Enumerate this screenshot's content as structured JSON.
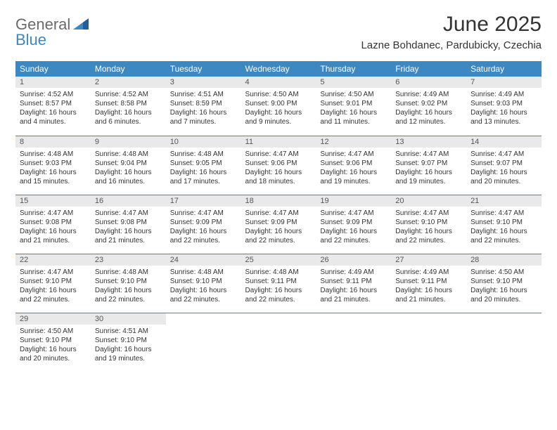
{
  "brand": {
    "line1": "General",
    "line2": "Blue",
    "line1_color": "#6a6a6a",
    "line2_color": "#3b88c3"
  },
  "title": "June 2025",
  "location": "Lazne Bohdanec, Pardubicky, Czechia",
  "header_bg": "#3b88c3",
  "header_fg": "#ffffff",
  "daynum_bg": "#e9e9e9",
  "border_color": "#3b88c3",
  "weekdays": [
    "Sunday",
    "Monday",
    "Tuesday",
    "Wednesday",
    "Thursday",
    "Friday",
    "Saturday"
  ],
  "days": [
    {
      "n": 1,
      "sr": "4:52 AM",
      "ss": "8:57 PM",
      "dl": "16 hours and 4 minutes."
    },
    {
      "n": 2,
      "sr": "4:52 AM",
      "ss": "8:58 PM",
      "dl": "16 hours and 6 minutes."
    },
    {
      "n": 3,
      "sr": "4:51 AM",
      "ss": "8:59 PM",
      "dl": "16 hours and 7 minutes."
    },
    {
      "n": 4,
      "sr": "4:50 AM",
      "ss": "9:00 PM",
      "dl": "16 hours and 9 minutes."
    },
    {
      "n": 5,
      "sr": "4:50 AM",
      "ss": "9:01 PM",
      "dl": "16 hours and 11 minutes."
    },
    {
      "n": 6,
      "sr": "4:49 AM",
      "ss": "9:02 PM",
      "dl": "16 hours and 12 minutes."
    },
    {
      "n": 7,
      "sr": "4:49 AM",
      "ss": "9:03 PM",
      "dl": "16 hours and 13 minutes."
    },
    {
      "n": 8,
      "sr": "4:48 AM",
      "ss": "9:03 PM",
      "dl": "16 hours and 15 minutes."
    },
    {
      "n": 9,
      "sr": "4:48 AM",
      "ss": "9:04 PM",
      "dl": "16 hours and 16 minutes."
    },
    {
      "n": 10,
      "sr": "4:48 AM",
      "ss": "9:05 PM",
      "dl": "16 hours and 17 minutes."
    },
    {
      "n": 11,
      "sr": "4:47 AM",
      "ss": "9:06 PM",
      "dl": "16 hours and 18 minutes."
    },
    {
      "n": 12,
      "sr": "4:47 AM",
      "ss": "9:06 PM",
      "dl": "16 hours and 19 minutes."
    },
    {
      "n": 13,
      "sr": "4:47 AM",
      "ss": "9:07 PM",
      "dl": "16 hours and 19 minutes."
    },
    {
      "n": 14,
      "sr": "4:47 AM",
      "ss": "9:07 PM",
      "dl": "16 hours and 20 minutes."
    },
    {
      "n": 15,
      "sr": "4:47 AM",
      "ss": "9:08 PM",
      "dl": "16 hours and 21 minutes."
    },
    {
      "n": 16,
      "sr": "4:47 AM",
      "ss": "9:08 PM",
      "dl": "16 hours and 21 minutes."
    },
    {
      "n": 17,
      "sr": "4:47 AM",
      "ss": "9:09 PM",
      "dl": "16 hours and 22 minutes."
    },
    {
      "n": 18,
      "sr": "4:47 AM",
      "ss": "9:09 PM",
      "dl": "16 hours and 22 minutes."
    },
    {
      "n": 19,
      "sr": "4:47 AM",
      "ss": "9:09 PM",
      "dl": "16 hours and 22 minutes."
    },
    {
      "n": 20,
      "sr": "4:47 AM",
      "ss": "9:10 PM",
      "dl": "16 hours and 22 minutes."
    },
    {
      "n": 21,
      "sr": "4:47 AM",
      "ss": "9:10 PM",
      "dl": "16 hours and 22 minutes."
    },
    {
      "n": 22,
      "sr": "4:47 AM",
      "ss": "9:10 PM",
      "dl": "16 hours and 22 minutes."
    },
    {
      "n": 23,
      "sr": "4:48 AM",
      "ss": "9:10 PM",
      "dl": "16 hours and 22 minutes."
    },
    {
      "n": 24,
      "sr": "4:48 AM",
      "ss": "9:10 PM",
      "dl": "16 hours and 22 minutes."
    },
    {
      "n": 25,
      "sr": "4:48 AM",
      "ss": "9:11 PM",
      "dl": "16 hours and 22 minutes."
    },
    {
      "n": 26,
      "sr": "4:49 AM",
      "ss": "9:11 PM",
      "dl": "16 hours and 21 minutes."
    },
    {
      "n": 27,
      "sr": "4:49 AM",
      "ss": "9:11 PM",
      "dl": "16 hours and 21 minutes."
    },
    {
      "n": 28,
      "sr": "4:50 AM",
      "ss": "9:10 PM",
      "dl": "16 hours and 20 minutes."
    },
    {
      "n": 29,
      "sr": "4:50 AM",
      "ss": "9:10 PM",
      "dl": "16 hours and 20 minutes."
    },
    {
      "n": 30,
      "sr": "4:51 AM",
      "ss": "9:10 PM",
      "dl": "16 hours and 19 minutes."
    }
  ],
  "labels": {
    "sunrise": "Sunrise:",
    "sunset": "Sunset:",
    "daylight": "Daylight:"
  },
  "start_weekday": 0
}
